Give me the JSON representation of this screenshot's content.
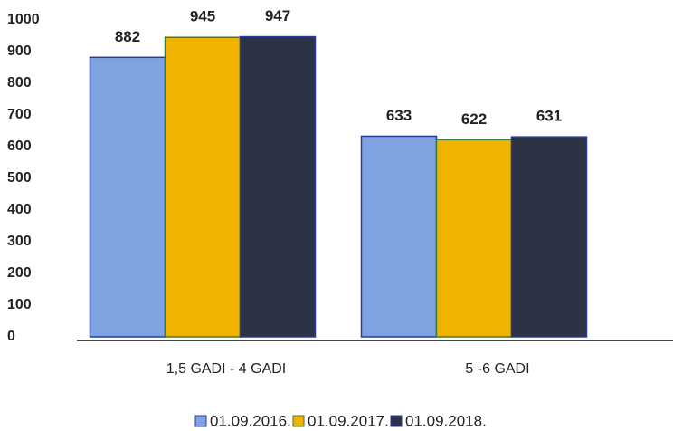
{
  "chart_data": {
    "type": "bar",
    "categories": [
      "1,5 GADI - 4 GADI",
      "5 -6 GADI"
    ],
    "series": [
      {
        "name": "01.09.2016.",
        "color": "#7fa3e0",
        "values": [
          882,
          633
        ]
      },
      {
        "name": "01.09.2017.",
        "color": "#f0b400",
        "values": [
          945,
          622
        ]
      },
      {
        "name": "01.09.2018.",
        "color": "#2c3345",
        "values": [
          947,
          631
        ]
      }
    ],
    "ylim": [
      0,
      1000
    ],
    "yticks": [
      0,
      100,
      200,
      300,
      400,
      500,
      600,
      700,
      800,
      900,
      1000
    ],
    "grid": false,
    "legend": "bottom"
  }
}
